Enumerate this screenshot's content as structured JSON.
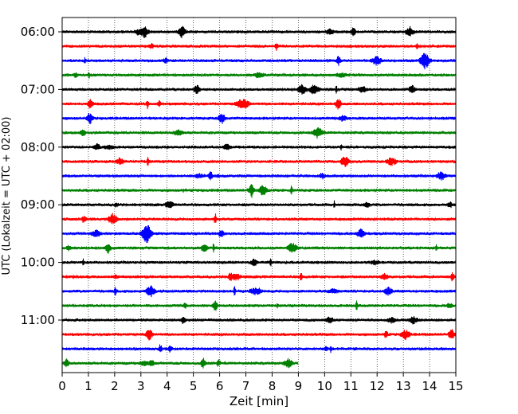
{
  "chart_data": {
    "type": "line",
    "title": "",
    "xlabel": "Zeit  [min]",
    "ylabel": "UTC (Lokalzeit = UTC + 02:00)",
    "xlim": [
      0,
      15
    ],
    "x_ticks": [
      0,
      1,
      2,
      3,
      4,
      5,
      6,
      7,
      8,
      9,
      10,
      11,
      12,
      13,
      14,
      15
    ],
    "y_ticks": [
      "06:00",
      "07:00",
      "08:00",
      "09:00",
      "10:00",
      "11:00"
    ],
    "grid": "vertical dotted",
    "row_minutes": 15,
    "trace_colors": [
      "#000000",
      "#ff0000",
      "#0000ff",
      "#008000"
    ],
    "traces": [
      {
        "start": "06:00",
        "end_min": 15
      },
      {
        "start": "06:15",
        "end_min": 15
      },
      {
        "start": "06:30",
        "end_min": 15
      },
      {
        "start": "06:45",
        "end_min": 15
      },
      {
        "start": "07:00",
        "end_min": 15
      },
      {
        "start": "07:15",
        "end_min": 15
      },
      {
        "start": "07:30",
        "end_min": 15
      },
      {
        "start": "07:45",
        "end_min": 15
      },
      {
        "start": "08:00",
        "end_min": 15
      },
      {
        "start": "08:15",
        "end_min": 15
      },
      {
        "start": "08:30",
        "end_min": 15
      },
      {
        "start": "08:45",
        "end_min": 15
      },
      {
        "start": "09:00",
        "end_min": 15
      },
      {
        "start": "09:15",
        "end_min": 15
      },
      {
        "start": "09:30",
        "end_min": 15
      },
      {
        "start": "09:45",
        "end_min": 15
      },
      {
        "start": "10:00",
        "end_min": 15
      },
      {
        "start": "10:15",
        "end_min": 15
      },
      {
        "start": "10:30",
        "end_min": 15
      },
      {
        "start": "10:45",
        "end_min": 15
      },
      {
        "start": "11:00",
        "end_min": 15
      },
      {
        "start": "11:15",
        "end_min": 15
      },
      {
        "start": "11:30",
        "end_min": 15
      },
      {
        "start": "11:45",
        "end_min": 9
      }
    ]
  }
}
